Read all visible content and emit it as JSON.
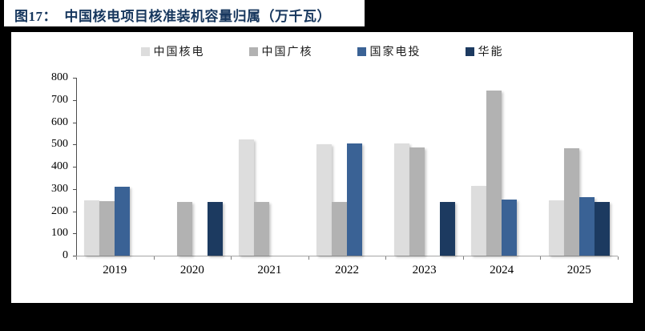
{
  "title": "图17：  中国核电项目核准装机容量归属（万千瓦）",
  "chart_data": {
    "type": "bar",
    "title": "中国核电项目核准装机容量归属（万千瓦）",
    "figure_label": "图17",
    "unit": "万千瓦",
    "categories": [
      "2019",
      "2020",
      "2021",
      "2022",
      "2023",
      "2024",
      "2025"
    ],
    "series": [
      {
        "name": "中国核电",
        "color": "#DDDDDD",
        "values": [
          248,
          null,
          524,
          502,
          504,
          312,
          248
        ]
      },
      {
        "name": "中国广核",
        "color": "#B2B2B2",
        "values": [
          244,
          242,
          242,
          242,
          486,
          741,
          482
        ]
      },
      {
        "name": "国家电投",
        "color": "#3A6295",
        "values": [
          309,
          null,
          null,
          505,
          null,
          253,
          262
        ]
      },
      {
        "name": "华能",
        "color": "#1C3A60",
        "values": [
          null,
          241,
          null,
          null,
          240,
          null,
          242
        ]
      }
    ],
    "ylim": [
      0,
      800
    ],
    "ytick_step": 100,
    "ytick_labels": [
      "0",
      "100",
      "200",
      "300",
      "400",
      "500",
      "600",
      "700",
      "800"
    ],
    "legend_position": "top",
    "grid": false,
    "colors": {
      "title": "#17375E",
      "page_background": "#000000",
      "panel_background": "#FFFFFF",
      "axis_y": "#4D4D4D",
      "axis_x": "#A6A6A6",
      "tick_text": "#000000"
    }
  }
}
